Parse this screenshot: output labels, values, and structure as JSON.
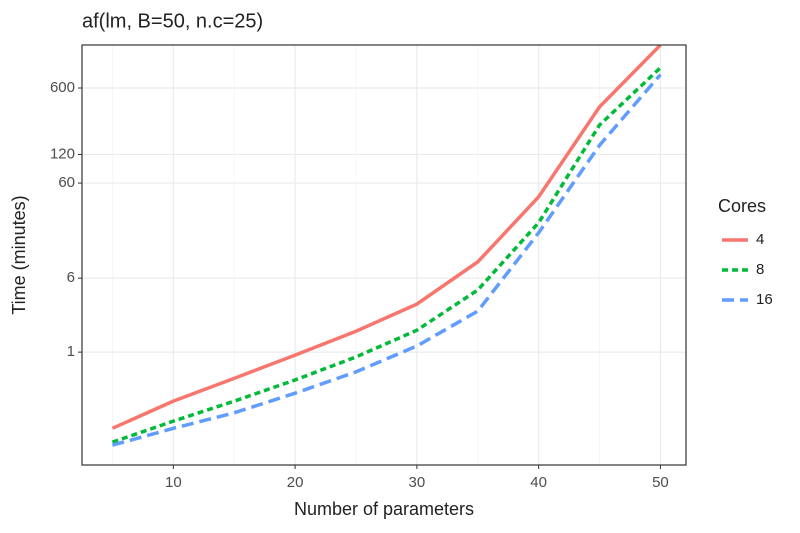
{
  "chart_data": {
    "type": "line",
    "title": "af(lm, B=50, n.c=25)",
    "x_label": "Number of parameters",
    "y_label": "Time (minutes)",
    "x": [
      5,
      10,
      15,
      20,
      25,
      30,
      35,
      40,
      45,
      50
    ],
    "series": [
      {
        "name": "4",
        "color": "#F8766D",
        "linetype": "solid",
        "values": [
          0.158,
          0.305,
          0.53,
          0.93,
          1.66,
          3.2,
          8.9,
          43,
          380,
          1700
        ]
      },
      {
        "name": "8",
        "color": "#00BA38",
        "linetype": "dotted",
        "values": [
          0.113,
          0.188,
          0.305,
          0.51,
          0.89,
          1.7,
          4.5,
          23,
          245,
          980
        ]
      },
      {
        "name": "16",
        "color": "#619CFF",
        "linetype": "dashed",
        "values": [
          0.105,
          0.158,
          0.23,
          0.37,
          0.62,
          1.16,
          2.7,
          18,
          150,
          830
        ]
      }
    ],
    "legend_title": "Cores",
    "legend_position": "right",
    "xlim": [
      2.5,
      52.1
    ],
    "xticks": [
      10,
      20,
      30,
      40,
      50
    ],
    "ylim": [
      0.065,
      1700
    ],
    "yticks": [
      1,
      6,
      60,
      120,
      600
    ],
    "y_scale": "log",
    "grid": true
  }
}
